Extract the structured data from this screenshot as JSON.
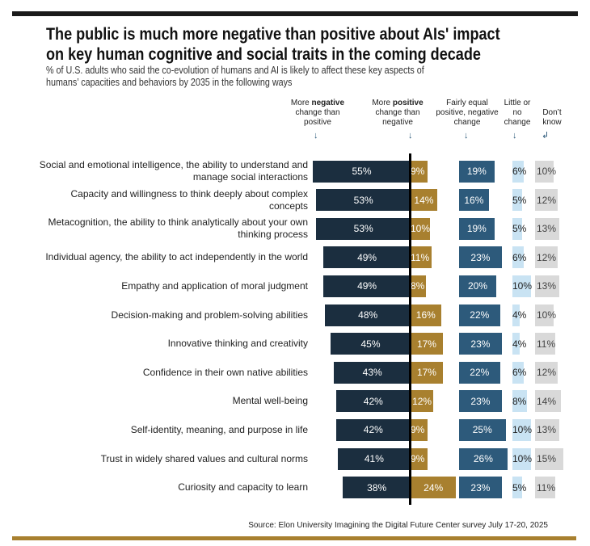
{
  "title_line1": "The public is much more negative than positive about AIs' impact",
  "title_line2": "on key human cognitive and social traits in the coming decade",
  "subtitle_line1": "% of U.S. adults who said the co-evolution of humans and AI is likely to affect these key aspects of",
  "subtitle_line2": "humans’ capacities and behaviors by 2035 in the following ways",
  "source": "Source: Elon University Imagining the Digital Future Center survey July 17-20, 2025",
  "chart_data": {
    "type": "bar",
    "layout": "diverging stacked horizontal with separate side columns",
    "colors": {
      "negative": "#1b2e3f",
      "positive": "#a8802f",
      "equal": "#2d5a7b",
      "little": "#c9e3f3",
      "dont_know": "#d9d9d9"
    },
    "columns": [
      {
        "key": "negative",
        "pre": "More ",
        "bold": "negative",
        "post": " change than positive"
      },
      {
        "key": "positive",
        "pre": "More ",
        "bold": "positive",
        "post": " change than negative"
      },
      {
        "key": "equal",
        "pre": "Fairly equal positive, negative change",
        "bold": "",
        "post": ""
      },
      {
        "key": "little",
        "pre": "Little or no change",
        "bold": "",
        "post": ""
      },
      {
        "key": "dont_know",
        "pre": "Don’t know",
        "bold": "",
        "post": ""
      }
    ],
    "categories": [
      "Social and emotional intelligence, the ability to understand and manage social interactions",
      "Capacity and willingness to think deeply about complex concepts",
      "Metacognition, the ability to think analytically about your own thinking process",
      "Individual agency, the ability to act independently in the world",
      "Empathy and application of moral judgment",
      "Decision-making and problem-solving abilities",
      "Innovative thinking and creativity",
      "Confidence in their own native abilities",
      "Mental well-being",
      "Self-identity, meaning, and purpose in life",
      "Trust in widely shared values and cultural norms",
      "Curiosity and capacity to learn"
    ],
    "series": [
      {
        "name": "More negative change than positive",
        "values": [
          55,
          53,
          53,
          49,
          49,
          48,
          45,
          43,
          42,
          42,
          41,
          38
        ]
      },
      {
        "name": "More positive change than negative",
        "values": [
          9,
          14,
          10,
          11,
          8,
          16,
          17,
          17,
          12,
          9,
          9,
          24
        ]
      },
      {
        "name": "Fairly equal positive, negative change",
        "values": [
          19,
          16,
          19,
          23,
          20,
          22,
          23,
          22,
          23,
          25,
          26,
          23
        ]
      },
      {
        "name": "Little or no change",
        "values": [
          6,
          5,
          5,
          6,
          10,
          4,
          4,
          6,
          8,
          10,
          10,
          5
        ]
      },
      {
        "name": "Don't know",
        "values": [
          10,
          12,
          13,
          12,
          13,
          10,
          11,
          12,
          14,
          13,
          15,
          11
        ]
      }
    ]
  }
}
